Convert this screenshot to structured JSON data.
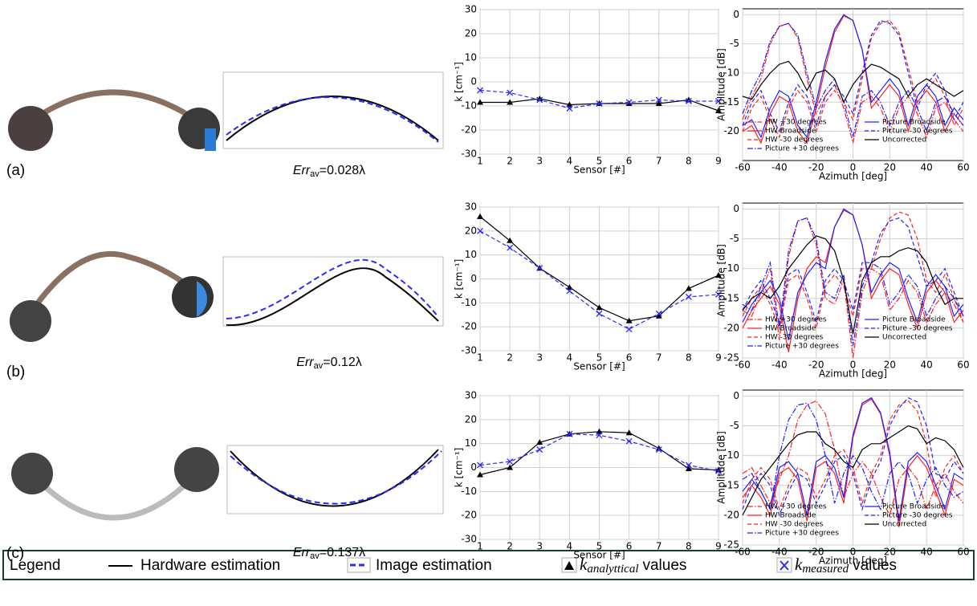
{
  "panels": [
    {
      "label": "(a)",
      "err": {
        "symbol": "Err",
        "sub": "av",
        "value": "=0.028λ"
      }
    },
    {
      "label": "(b)",
      "err": {
        "symbol": "Err",
        "sub": "av",
        "value": "=0.12λ"
      }
    },
    {
      "label": "(c)",
      "err": {
        "symbol": "Err",
        "sub": "av",
        "value": "=0.137λ"
      }
    }
  ],
  "chart_data": [
    {
      "type": "line",
      "xlabel": "Sensor [#]",
      "ylabel": "k [cm⁻¹]",
      "x": [
        1,
        2,
        3,
        4,
        5,
        6,
        7,
        8,
        9
      ],
      "xlim": [
        1,
        9
      ],
      "xticks": [
        1,
        2,
        3,
        4,
        5,
        6,
        7,
        8,
        9
      ],
      "ylim": [
        -30,
        30
      ],
      "yticks": [
        -30,
        -20,
        -10,
        0,
        10,
        20,
        30
      ],
      "grid": true,
      "series": [
        {
          "color": "#000000",
          "style": "solid",
          "marker": "triangle",
          "values": [
            -8.5,
            -8.5,
            -7,
            -9.5,
            -9,
            -9,
            -9,
            -7.5,
            -12
          ]
        },
        {
          "color": "#2a2aff",
          "style": "dashed",
          "marker": "x",
          "values": [
            -3.5,
            -4.5,
            -7.5,
            -11,
            -9,
            -8.5,
            -7.5,
            -8,
            -8
          ]
        }
      ]
    },
    {
      "type": "line",
      "xlabel": "Azimuth [deg]",
      "ylabel": "Amplitude [dB]",
      "legend": "lower",
      "x": [
        -60,
        -55,
        -50,
        -45,
        -40,
        -35,
        -30,
        -25,
        -20,
        -15,
        -10,
        -5,
        0,
        5,
        10,
        15,
        20,
        25,
        30,
        35,
        40,
        45,
        50,
        55,
        60
      ],
      "xlim": [
        -60,
        60
      ],
      "xticks": [
        -60,
        -40,
        -20,
        0,
        20,
        40,
        60
      ],
      "ylim": [
        -25,
        1
      ],
      "yticks": [
        -20,
        -15,
        -10,
        -5,
        0
      ],
      "grid": true,
      "series": [
        {
          "name": "HW +30 degrees",
          "color": "#ff2020",
          "style": "dashdot",
          "values": [
            -18,
            -14,
            -11,
            -5,
            -2,
            -1.5,
            -4,
            -11,
            -17,
            -14,
            -12,
            -16,
            -22,
            -15,
            -14,
            -16,
            -20,
            -16,
            -14,
            -17,
            -21,
            -16,
            -15,
            -18,
            -20
          ]
        },
        {
          "name": "HW Broadside",
          "color": "#ff2020",
          "style": "solid",
          "values": [
            -20,
            -19,
            -22,
            -17,
            -14,
            -15,
            -20,
            -22,
            -16,
            -9,
            -3,
            -0.2,
            -1,
            -6,
            -16,
            -14,
            -12,
            -14,
            -20,
            -15,
            -13,
            -15,
            -20,
            -17,
            -19
          ]
        },
        {
          "name": "HW -30 degrees",
          "color": "#ff2020",
          "style": "dashed",
          "values": [
            -20,
            -16,
            -14,
            -18,
            -21,
            -16,
            -13,
            -15,
            -20,
            -15,
            -13,
            -15,
            -18,
            -11,
            -4,
            -1.5,
            -1,
            -3,
            -9,
            -15,
            -13,
            -11,
            -14,
            -19,
            -16
          ]
        },
        {
          "name": "Picture +30 degrees",
          "color": "#2020ff",
          "style": "dashdot",
          "values": [
            -17,
            -13,
            -10,
            -4.5,
            -2,
            -1.5,
            -3.5,
            -10,
            -16,
            -13,
            -11,
            -15,
            -21,
            -14,
            -13,
            -15,
            -19,
            -15,
            -13,
            -16,
            -20,
            -15,
            -14,
            -17,
            -19
          ]
        },
        {
          "name": "Picture Broadside",
          "color": "#2020ff",
          "style": "solid",
          "values": [
            -19,
            -18,
            -21,
            -16,
            -13,
            -14,
            -19,
            -21,
            -15,
            -8,
            -2.5,
            0,
            -1,
            -6,
            -15,
            -13,
            -11,
            -13,
            -19,
            -14,
            -12,
            -14,
            -19,
            -16,
            -18
          ]
        },
        {
          "name": "Picture -30 degrees",
          "color": "#2020ff",
          "style": "dashed",
          "values": [
            -19,
            -15,
            -13,
            -17,
            -20,
            -15,
            -12,
            -14,
            -19,
            -14,
            -12,
            -14,
            -17,
            -10,
            -3.5,
            -1,
            -1.5,
            -3.5,
            -10,
            -16,
            -12,
            -10,
            -13,
            -18,
            -15
          ]
        },
        {
          "name": "Uncorrected",
          "color": "#000000",
          "style": "solid",
          "values": [
            -14,
            -14.5,
            -12,
            -10,
            -8.5,
            -8,
            -10,
            -13,
            -10,
            -9.5,
            -11,
            -15,
            -12,
            -10,
            -8.5,
            -9,
            -10,
            -11,
            -14,
            -12,
            -11,
            -12,
            -13,
            -14,
            -13
          ]
        }
      ]
    },
    {
      "type": "line",
      "xlabel": "Sensor [#]",
      "ylabel": "k [cm⁻¹]",
      "x": [
        1,
        2,
        3,
        4,
        5,
        6,
        7,
        8,
        9
      ],
      "xlim": [
        1,
        9
      ],
      "xticks": [
        1,
        2,
        3,
        4,
        5,
        6,
        7,
        8,
        9
      ],
      "ylim": [
        -30,
        30
      ],
      "yticks": [
        -30,
        -20,
        -10,
        0,
        10,
        20,
        30
      ],
      "grid": true,
      "series": [
        {
          "color": "#000000",
          "style": "solid",
          "marker": "triangle",
          "values": [
            26,
            16,
            4.5,
            -3.5,
            -12,
            -17.5,
            -15.5,
            -4,
            1.5
          ]
        },
        {
          "color": "#2a2aff",
          "style": "dashed",
          "marker": "x",
          "values": [
            20,
            13,
            4.5,
            -5,
            -14.5,
            -21,
            -14.5,
            -7.5,
            -6.5
          ]
        }
      ]
    },
    {
      "type": "line",
      "xlabel": "Azimuth [deg]",
      "ylabel": "Amplitude [dB]",
      "legend": "lower",
      "x": [
        -60,
        -55,
        -50,
        -45,
        -40,
        -35,
        -30,
        -25,
        -20,
        -15,
        -10,
        -5,
        0,
        5,
        10,
        15,
        20,
        25,
        30,
        35,
        40,
        45,
        50,
        55,
        60
      ],
      "xlim": [
        -60,
        60
      ],
      "xticks": [
        -60,
        -40,
        -20,
        0,
        20,
        40,
        60
      ],
      "ylim": [
        -25,
        1
      ],
      "yticks": [
        -25,
        -20,
        -15,
        -10,
        -5,
        0
      ],
      "grid": true,
      "series": [
        {
          "name": "HW +30 degrees",
          "color": "#ff2020",
          "style": "dashdot",
          "values": [
            -17,
            -18,
            -14,
            -10,
            -22,
            -8,
            -2,
            -1.5,
            -6,
            -15,
            -16,
            -12,
            -25,
            -14,
            -10,
            -11,
            -17,
            -15,
            -12,
            -14,
            -19,
            -16,
            -14,
            -16,
            -19
          ]
        },
        {
          "name": "HW Broadside",
          "color": "#ff2020",
          "style": "solid",
          "values": [
            -20,
            -17,
            -15,
            -13,
            -16,
            -24,
            -15,
            -10,
            -8,
            -9,
            -3,
            -0.2,
            -1,
            -6,
            -15,
            -12,
            -10,
            -11,
            -16,
            -20,
            -14,
            -12,
            -14,
            -19,
            -17
          ]
        },
        {
          "name": "HW -30 degrees",
          "color": "#ff2020",
          "style": "dashed",
          "values": [
            -18,
            -15,
            -13,
            -16,
            -20,
            -12,
            -11,
            -15,
            -20,
            -13,
            -11,
            -13,
            -18,
            -10,
            -10,
            -5,
            -1.5,
            -0.5,
            -1,
            -5,
            -12,
            -14,
            -11,
            -15,
            -19
          ]
        },
        {
          "name": "Picture +30 degrees",
          "color": "#2020ff",
          "style": "dashdot",
          "values": [
            -16,
            -17,
            -13,
            -9,
            -20,
            -7,
            -2,
            -1.5,
            -5,
            -14,
            -15,
            -11,
            -23,
            -13,
            -9,
            -10,
            -16,
            -14,
            -11,
            -13,
            -18,
            -15,
            -13,
            -15,
            -18
          ]
        },
        {
          "name": "Picture Broadside",
          "color": "#2020ff",
          "style": "solid",
          "values": [
            -19,
            -16,
            -14,
            -12,
            -15,
            -22,
            -14,
            -11,
            -9,
            -10,
            -3,
            0,
            -1,
            -6,
            -14,
            -11,
            -9,
            -10,
            -15,
            -19,
            -13,
            -11,
            -13,
            -18,
            -16
          ]
        },
        {
          "name": "Picture -30 degrees",
          "color": "#2020ff",
          "style": "dashed",
          "values": [
            -17,
            -14,
            -12,
            -15,
            -19,
            -11,
            -10,
            -14,
            -19,
            -12,
            -10,
            -12,
            -17,
            -9,
            -9,
            -4,
            -2,
            -1.5,
            -3,
            -8,
            -13,
            -12,
            -10,
            -14,
            -18
          ]
        },
        {
          "name": "Uncorrected",
          "color": "#000000",
          "style": "solid",
          "values": [
            -17,
            -15,
            -14,
            -15,
            -13,
            -10,
            -8,
            -6,
            -4.5,
            -5,
            -7,
            -12,
            -21,
            -12,
            -9,
            -8,
            -8,
            -7,
            -6.5,
            -7,
            -9,
            -13,
            -16,
            -15,
            -15
          ]
        }
      ]
    },
    {
      "type": "line",
      "xlabel": "Sensor [#]",
      "ylabel": "k [cm⁻¹]",
      "x": [
        1,
        2,
        3,
        4,
        5,
        6,
        7,
        8,
        9
      ],
      "xlim": [
        1,
        9
      ],
      "xticks": [
        1,
        2,
        3,
        4,
        5,
        6,
        7,
        8,
        9
      ],
      "ylim": [
        -30,
        30
      ],
      "yticks": [
        -30,
        -20,
        -10,
        0,
        10,
        20,
        30
      ],
      "grid": true,
      "series": [
        {
          "color": "#000000",
          "style": "solid",
          "marker": "triangle",
          "values": [
            -3,
            0,
            10.5,
            14,
            15,
            14.5,
            8,
            -0.5,
            -1
          ]
        },
        {
          "color": "#2a2aff",
          "style": "dashed",
          "marker": "x",
          "values": [
            1,
            2.5,
            7.5,
            14,
            13.5,
            11,
            7.5,
            1,
            -1.5
          ]
        }
      ]
    },
    {
      "type": "line",
      "xlabel": "Azimuth [deg]",
      "ylabel": "Amplitude [dB]",
      "legend": "lower",
      "x": [
        -60,
        -55,
        -50,
        -45,
        -40,
        -35,
        -30,
        -25,
        -20,
        -15,
        -10,
        -5,
        0,
        5,
        10,
        15,
        20,
        25,
        30,
        35,
        40,
        45,
        50,
        55,
        60
      ],
      "xlim": [
        -60,
        60
      ],
      "xticks": [
        -60,
        -40,
        -20,
        0,
        20,
        40,
        60
      ],
      "ylim": [
        -25,
        1
      ],
      "yticks": [
        -25,
        -20,
        -15,
        -10,
        -5,
        0
      ],
      "grid": true,
      "series": [
        {
          "name": "HW +30 degrees",
          "color": "#ff2020",
          "style": "dashdot",
          "values": [
            -13,
            -12,
            -15,
            -18,
            -14,
            -10,
            -4,
            -1.5,
            -0.8,
            -3,
            -9,
            -17,
            -13,
            -11,
            -13,
            -17,
            -20,
            -14,
            -12,
            -14,
            -19,
            -15,
            -13,
            -16,
            -18
          ]
        },
        {
          "name": "HW Broadside",
          "color": "#ff2020",
          "style": "solid",
          "values": [
            -17,
            -15,
            -17,
            -20,
            -13,
            -12,
            -14,
            -21,
            -12,
            -11,
            -13,
            -18,
            -7,
            -1.5,
            -0.5,
            -3,
            -10,
            -22,
            -12,
            -10,
            -12,
            -16,
            -20,
            -14,
            -15
          ]
        },
        {
          "name": "HW -30 degrees",
          "color": "#ff2020",
          "style": "dashed",
          "values": [
            -18,
            -14,
            -12,
            -14,
            -19,
            -15,
            -12,
            -13,
            -17,
            -14,
            -10,
            -9,
            -12,
            -18,
            -13,
            -10,
            -4,
            -1.5,
            -0.8,
            -2.5,
            -8,
            -17,
            -12,
            -10,
            -13
          ]
        },
        {
          "name": "Picture +30 degrees",
          "color": "#2020ff",
          "style": "dashdot",
          "values": [
            -14,
            -13,
            -16,
            -19,
            -10,
            -4,
            -1.5,
            -1.2,
            -4,
            -10,
            -18,
            -13,
            -10,
            -12,
            -16,
            -19,
            -13,
            -11,
            -13,
            -18,
            -14,
            -12,
            -15,
            -17,
            -16
          ]
        },
        {
          "name": "Picture Broadside",
          "color": "#2020ff",
          "style": "solid",
          "values": [
            -16,
            -14,
            -16,
            -19,
            -12,
            -11,
            -13,
            -20,
            -11,
            -10,
            -12,
            -17,
            -6.5,
            -1.2,
            -0.3,
            -2.8,
            -9.5,
            -21,
            -11,
            -9.5,
            -11,
            -15,
            -19,
            -13,
            -14
          ]
        },
        {
          "name": "Picture -30 degrees",
          "color": "#2020ff",
          "style": "dashed",
          "values": [
            -19,
            -15,
            -13,
            -15,
            -20,
            -16,
            -13,
            -14,
            -18,
            -15,
            -11,
            -10,
            -13,
            -19,
            -14,
            -11,
            -5,
            -2,
            -0.3,
            -1,
            -5,
            -13,
            -14,
            -11,
            -13
          ]
        },
        {
          "name": "Uncorrected",
          "color": "#000000",
          "style": "solid",
          "values": [
            -20,
            -17,
            -14,
            -12,
            -10,
            -8,
            -6.5,
            -6,
            -6,
            -8,
            -9,
            -11,
            -12,
            -9,
            -8,
            -8,
            -7,
            -6,
            -5,
            -5.5,
            -8,
            -7,
            -7.5,
            -9,
            -12
          ]
        }
      ]
    }
  ],
  "legend": {
    "title": "Legend",
    "items": [
      {
        "text": "Hardware estimation"
      },
      {
        "text": "Image estimation"
      },
      {
        "symbol": "k",
        "sub": "analyttical",
        "text": "values"
      },
      {
        "symbol": "k",
        "sub": "measured",
        "text": "values"
      }
    ]
  }
}
